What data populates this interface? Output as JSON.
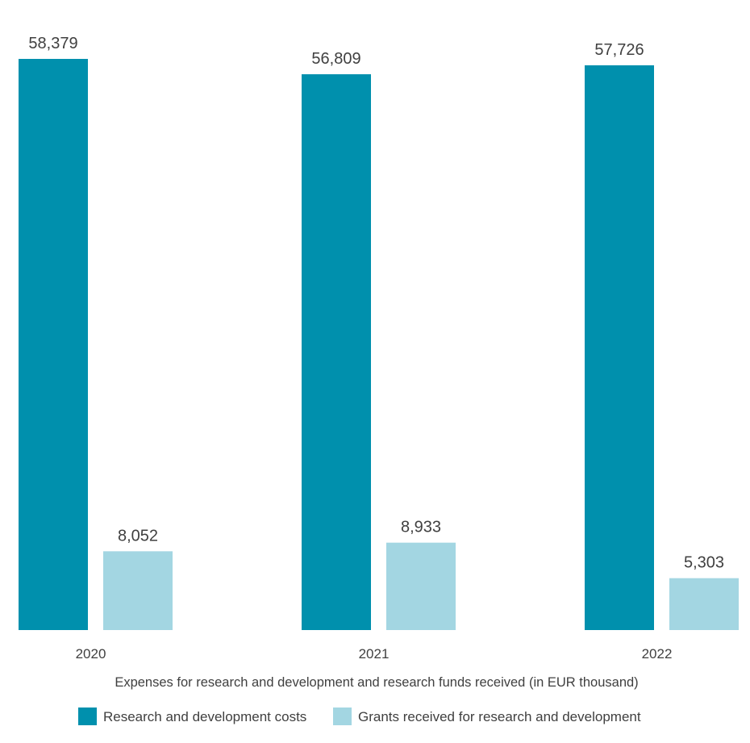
{
  "chart_data": {
    "type": "bar",
    "categories": [
      "2020",
      "2021",
      "2022"
    ],
    "series": [
      {
        "name": "Research and development costs",
        "values": [
          58379,
          56809,
          57726
        ],
        "labels": [
          "58,379",
          "56,809",
          "57,726"
        ],
        "color": "#0090AD"
      },
      {
        "name": "Grants received for research and development",
        "values": [
          8052,
          8933,
          5303
        ],
        "labels": [
          "8,052",
          "8,933",
          "5,303"
        ],
        "color": "#A3D6E2"
      }
    ],
    "title": "",
    "xlabel": "Expenses for research and development and research funds received (in EUR thousand)",
    "ylabel": "",
    "ylim": [
      0,
      58379
    ],
    "grid": false,
    "legend": "bottom"
  }
}
